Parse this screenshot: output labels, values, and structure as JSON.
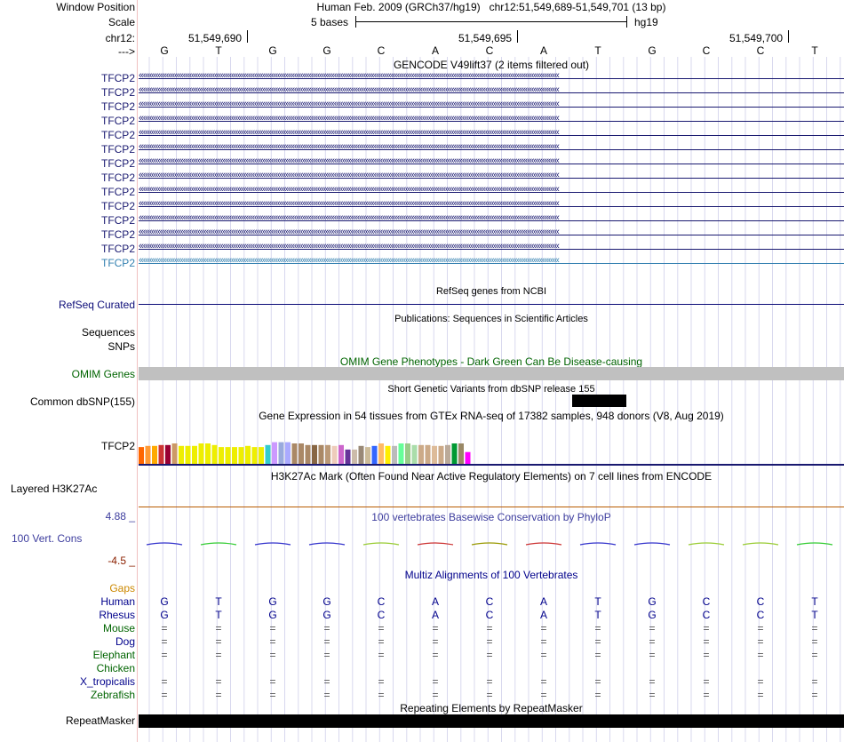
{
  "header": {
    "window_position_label": "Window Position",
    "window_position_value": "Human Feb. 2009 (GRCh37/hg19)   chr12:51,549,689-51,549,701 (13 bp)",
    "scale_label": "Scale",
    "scale_text": "5 bases",
    "assembly": "hg19",
    "chrom_label": "chr12:",
    "ticks": [
      "51,549,690",
      "51,549,695",
      "51,549,700"
    ],
    "strand_label": "--->",
    "bases": [
      "G",
      "T",
      "G",
      "G",
      "C",
      "A",
      "C",
      "A",
      "T",
      "G",
      "C",
      "C",
      "T"
    ]
  },
  "gencode": {
    "title": "GENCODE V49lift37 (2 items filtered out)",
    "gene_labels": [
      "TFCP2",
      "TFCP2",
      "TFCP2",
      "TFCP2",
      "TFCP2",
      "TFCP2",
      "TFCP2",
      "TFCP2",
      "TFCP2",
      "TFCP2",
      "TFCP2",
      "TFCP2",
      "TFCP2",
      "TFCP2"
    ],
    "gene_color": "#191970",
    "last_gene_color": "#3380b0"
  },
  "refseq": {
    "title": "RefSeq genes from NCBI",
    "label": "RefSeq Curated",
    "color": "#0c0c78"
  },
  "publications": {
    "title": "Publications: Sequences in Scientific Articles",
    "label_sequences": "Sequences",
    "label_snps": "SNPs"
  },
  "omim": {
    "label": "OMIM Genes",
    "title": "OMIM Gene Phenotypes - Dark Green Can Be Disease-causing",
    "color": "#006400",
    "bar_color": "#c0c0c0"
  },
  "dbsnp": {
    "title": "Short Genetic Variants from dbSNP release 155",
    "label": "Common dbSNP(155)"
  },
  "gtex": {
    "title": "Gene Expression in 54 tissues from GTEx RNA-seq of 17382 samples, 948 donors (V8, Aug 2019)",
    "label": "TFCP2",
    "bar_colors": [
      "#ff6600",
      "#ff9933",
      "#ffaa00",
      "#cc3333",
      "#990033",
      "#cc9966",
      "#eeee00",
      "#eeee00",
      "#eeee00",
      "#eeee00",
      "#eeee00",
      "#eeee00",
      "#eeee00",
      "#eeee00",
      "#eeee00",
      "#eeee00",
      "#eeee00",
      "#eeee00",
      "#eeee00",
      "#33cccc",
      "#cc99ff",
      "#99aadd",
      "#aaaaff",
      "#aa8866",
      "#aa8866",
      "#aa8866",
      "#886644",
      "#aa8866",
      "#bb9977",
      "#eeccbb",
      "#cc66cc",
      "#663399",
      "#ccbbaa",
      "#998877",
      "#ccbb99",
      "#3366ff",
      "#ffbb66",
      "#ffee00",
      "#bbbbbb",
      "#66ff99",
      "#99cc88",
      "#aaddaa",
      "#ccaa88",
      "#ccaa88",
      "#ddbb99",
      "#ccaa88",
      "#bbaa99",
      "#009933",
      "#998866",
      "#ff00ff"
    ],
    "values": [
      0.41,
      0.44,
      0.44,
      0.46,
      0.46,
      0.5,
      0.44,
      0.44,
      0.44,
      0.5,
      0.5,
      0.46,
      0.41,
      0.41,
      0.41,
      0.41,
      0.44,
      0.41,
      0.41,
      0.46,
      0.53,
      0.53,
      0.53,
      0.5,
      0.5,
      0.46,
      0.46,
      0.46,
      0.46,
      0.44,
      0.46,
      0.35,
      0.35,
      0.44,
      0.41,
      0.44,
      0.5,
      0.44,
      0.44,
      0.5,
      0.5,
      0.46,
      0.46,
      0.46,
      0.44,
      0.44,
      0.46,
      0.5,
      0.5,
      0.29
    ],
    "scale_max": 1.0
  },
  "h3k27ac": {
    "title": "H3K27Ac Mark (Often Found Near Active Regulatory Elements) on 7 cell lines from ENCODE",
    "label": "Layered H3K27Ac",
    "color": "#b85c00"
  },
  "phylop": {
    "title": "100 vertebrates Basewise Conservation by PhyloP",
    "label": "100 Vert. Cons",
    "max_label": "4.88 _",
    "min_label": "-4.5 _",
    "color": "#3d3d9e",
    "min_color": "#8b2000"
  },
  "multiz": {
    "title": "Multiz Alignments of 100 Vertebrates",
    "gaps_label": "Gaps",
    "gaps_color": "#cc8800",
    "species": [
      {
        "name": "Human",
        "color": "#00008b",
        "row": [
          "G",
          "T",
          "G",
          "G",
          "C",
          "A",
          "C",
          "A",
          "T",
          "G",
          "C",
          "C",
          "T"
        ]
      },
      {
        "name": "Rhesus",
        "color": "#00008b",
        "row": [
          "G",
          "T",
          "G",
          "G",
          "C",
          "A",
          "C",
          "A",
          "T",
          "G",
          "C",
          "C",
          "T"
        ]
      },
      {
        "name": "Mouse",
        "color": "#006400",
        "row": [
          "=",
          "=",
          "=",
          "=",
          "=",
          "=",
          "=",
          "=",
          "=",
          "=",
          "=",
          "=",
          "="
        ]
      },
      {
        "name": "Dog",
        "color": "#00008b",
        "row": [
          "=",
          "=",
          "=",
          "=",
          "=",
          "=",
          "=",
          "=",
          "=",
          "=",
          "=",
          "=",
          "="
        ]
      },
      {
        "name": "Elephant",
        "color": "#006400",
        "row": [
          "=",
          "=",
          "=",
          "=",
          "=",
          "=",
          "=",
          "=",
          "=",
          "=",
          "=",
          "=",
          "="
        ]
      },
      {
        "name": "Chicken",
        "color": "#006400",
        "row": [
          "",
          "",
          "",
          "",
          "",
          "",
          "",
          "",
          "",
          "",
          "",
          "",
          ""
        ]
      },
      {
        "name": "X_tropicalis",
        "color": "#00008b",
        "row": [
          "=",
          "=",
          "=",
          "=",
          "=",
          "=",
          "=",
          "=",
          "=",
          "=",
          "=",
          "=",
          "="
        ]
      },
      {
        "name": "Zebrafish",
        "color": "#006400",
        "row": [
          "=",
          "=",
          "=",
          "=",
          "=",
          "=",
          "=",
          "=",
          "=",
          "=",
          "=",
          "=",
          "="
        ]
      }
    ]
  },
  "repeatmasker": {
    "title": "Repeating Elements by RepeatMasker",
    "label": "RepeatMasker"
  }
}
